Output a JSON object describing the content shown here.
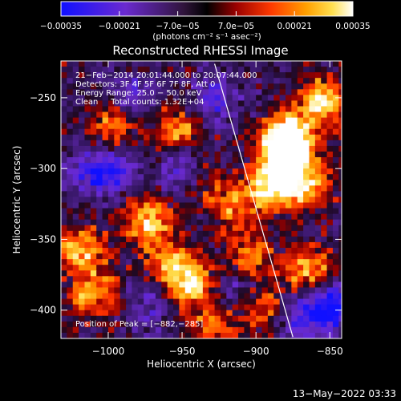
{
  "chart_data": {
    "type": "heatmap",
    "title": "Reconstructed RHESSI Image",
    "xlabel": "Heliocentric X (arcsec)",
    "ylabel": "Heliocentric Y (arcsec)",
    "xlim": [
      -1032,
      -842
    ],
    "ylim": [
      -420,
      -224
    ],
    "x_ticks": [
      -1000,
      -950,
      -900,
      -850
    ],
    "y_ticks": [
      -250,
      -300,
      -350,
      -400
    ],
    "x_tick_labels": [
      "−1000",
      "−950",
      "−900",
      "−850"
    ],
    "y_tick_labels": [
      "−250",
      "−300",
      "−350",
      "−400"
    ],
    "colorbar": {
      "range": [
        -0.00035,
        0.00035
      ],
      "ticks": [
        -0.00035,
        -0.00021,
        -7e-05,
        7e-05,
        0.00021,
        0.00035
      ],
      "tick_labels": [
        "−0.00035",
        "−0.00021",
        "−7.0e−05",
        "7.0e−05",
        "0.00021",
        "0.00035"
      ],
      "unit_label": "(photons cm⁻² s⁻¹ asec⁻²)",
      "colormap": "blue-purple-black-red-orange-yellow-white"
    },
    "annotations": {
      "time_range": "21−Feb−2014 20:01:44.000 to 20:07:44.000",
      "detectors": "Detectors: 3F 4F 5F 6F 7F 8F, Att 0",
      "energy_range": "Energy Range: 25.0 − 50.0 keV",
      "clean_counts": "Clean     Total counts: 1.32E+04",
      "peak_position": "Position of Peak = [−882,−285]"
    },
    "limb_line": {
      "x": [
        -928,
        -875
      ],
      "y": [
        -226,
        -419
      ]
    },
    "hot_regions": [
      {
        "x": -1000,
        "y": -268,
        "level": 0.55
      },
      {
        "x": -975,
        "y": -335,
        "level": 0.8
      },
      {
        "x": -1020,
        "y": -355,
        "level": 0.75
      },
      {
        "x": -1012,
        "y": -385,
        "level": 0.7
      },
      {
        "x": -955,
        "y": -270,
        "level": 0.6
      },
      {
        "x": -940,
        "y": -305,
        "level": 0.45
      },
      {
        "x": -945,
        "y": -380,
        "level": 0.8
      },
      {
        "x": -960,
        "y": -365,
        "level": 0.6
      },
      {
        "x": -918,
        "y": -325,
        "level": 0.5
      },
      {
        "x": -892,
        "y": -310,
        "level": 0.95
      },
      {
        "x": -880,
        "y": -275,
        "level": 1.0
      },
      {
        "x": -882,
        "y": -285,
        "level": 1.0
      },
      {
        "x": -870,
        "y": -310,
        "level": 0.85
      },
      {
        "x": -858,
        "y": -250,
        "level": 0.85
      },
      {
        "x": -866,
        "y": -370,
        "level": 0.7
      },
      {
        "x": -905,
        "y": -360,
        "level": 0.6
      },
      {
        "x": -900,
        "y": -395,
        "level": 0.55
      },
      {
        "x": -930,
        "y": -410,
        "level": 0.5
      }
    ],
    "cold_regions": [
      {
        "x": -1000,
        "y": -300,
        "level": 0.7
      },
      {
        "x": -950,
        "y": -300,
        "level": 0.6
      },
      {
        "x": -930,
        "y": -250,
        "level": 0.55
      },
      {
        "x": -985,
        "y": -245,
        "level": 0.45
      },
      {
        "x": -852,
        "y": -395,
        "level": 0.9
      },
      {
        "x": -870,
        "y": -405,
        "level": 0.5
      },
      {
        "x": -1020,
        "y": -300,
        "level": 0.4
      },
      {
        "x": -915,
        "y": -385,
        "level": 0.45
      },
      {
        "x": -975,
        "y": -395,
        "level": 0.4
      }
    ],
    "grid": false,
    "legend": "none"
  },
  "footer": {
    "timestamp": "13−May−2022 03:33"
  }
}
